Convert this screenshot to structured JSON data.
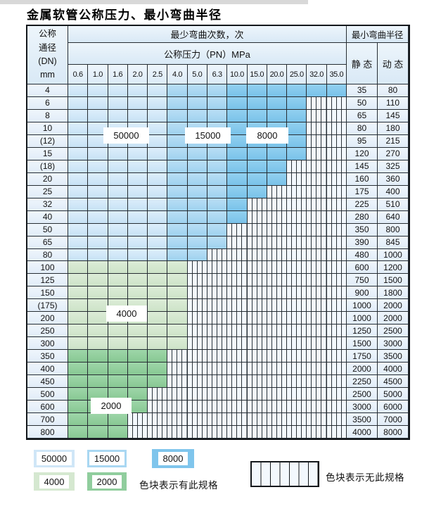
{
  "title": "金属软管公称压力、最小弯曲半径",
  "table": {
    "header": {
      "dn_lines": [
        "公称",
        "通径",
        "(DN)",
        "mm"
      ],
      "bend_cycles": "最少弯曲次数，次",
      "pressure": "公称压力（PN）MPa",
      "pressures": [
        "0.6",
        "1.0",
        "1.6",
        "2.0",
        "2.5",
        "4.0",
        "5.0",
        "6.3",
        "10.0",
        "15.0",
        "20.0",
        "25.0",
        "32.0",
        "35.0"
      ],
      "radius": "最小弯曲半径",
      "static": "静 态",
      "dynamic": "动 态"
    },
    "zone_columns": {
      "50000": [
        0,
        4
      ],
      "15000": [
        5,
        7
      ],
      "8000": [
        8,
        13
      ]
    },
    "rows": [
      {
        "dn": "4",
        "colored_cols": 14,
        "zone": "blue",
        "static": "35",
        "dynamic": "80"
      },
      {
        "dn": "6",
        "colored_cols": 12,
        "zone": "blue",
        "static": "50",
        "dynamic": "110"
      },
      {
        "dn": "8",
        "colored_cols": 12,
        "zone": "blue",
        "static": "65",
        "dynamic": "145"
      },
      {
        "dn": "10",
        "colored_cols": 12,
        "zone": "blue",
        "static": "80",
        "dynamic": "180"
      },
      {
        "dn": "(12)",
        "colored_cols": 12,
        "zone": "blue",
        "static": "95",
        "dynamic": "215"
      },
      {
        "dn": "15",
        "colored_cols": 12,
        "zone": "blue",
        "static": "120",
        "dynamic": "270"
      },
      {
        "dn": "(18)",
        "colored_cols": 11,
        "zone": "blue",
        "static": "145",
        "dynamic": "325"
      },
      {
        "dn": "20",
        "colored_cols": 11,
        "zone": "blue",
        "static": "160",
        "dynamic": "360"
      },
      {
        "dn": "25",
        "colored_cols": 10,
        "zone": "blue",
        "static": "175",
        "dynamic": "400"
      },
      {
        "dn": "32",
        "colored_cols": 9,
        "zone": "blue",
        "static": "225",
        "dynamic": "510"
      },
      {
        "dn": "40",
        "colored_cols": 9,
        "zone": "blue",
        "static": "280",
        "dynamic": "640"
      },
      {
        "dn": "50",
        "colored_cols": 8,
        "zone": "blue",
        "static": "350",
        "dynamic": "800"
      },
      {
        "dn": "65",
        "colored_cols": 8,
        "zone": "blue",
        "static": "390",
        "dynamic": "845"
      },
      {
        "dn": "80",
        "colored_cols": 7,
        "zone": "blue",
        "static": "480",
        "dynamic": "1000"
      },
      {
        "dn": "100",
        "colored_cols": 6,
        "zone": "4000",
        "static": "600",
        "dynamic": "1200"
      },
      {
        "dn": "125",
        "colored_cols": 6,
        "zone": "4000",
        "static": "750",
        "dynamic": "1500"
      },
      {
        "dn": "150",
        "colored_cols": 6,
        "zone": "4000",
        "static": "900",
        "dynamic": "1800"
      },
      {
        "dn": "(175)",
        "colored_cols": 6,
        "zone": "4000",
        "static": "1000",
        "dynamic": "2000"
      },
      {
        "dn": "200",
        "colored_cols": 6,
        "zone": "4000",
        "static": "1000",
        "dynamic": "2000"
      },
      {
        "dn": "250",
        "colored_cols": 6,
        "zone": "4000",
        "static": "1250",
        "dynamic": "2500"
      },
      {
        "dn": "300",
        "colored_cols": 6,
        "zone": "4000",
        "static": "1500",
        "dynamic": "3000"
      },
      {
        "dn": "350",
        "colored_cols": 5,
        "zone": "2000",
        "static": "1750",
        "dynamic": "3500"
      },
      {
        "dn": "400",
        "colored_cols": 5,
        "zone": "2000",
        "static": "2000",
        "dynamic": "4000"
      },
      {
        "dn": "450",
        "colored_cols": 5,
        "zone": "2000",
        "static": "2250",
        "dynamic": "4500"
      },
      {
        "dn": "500",
        "colored_cols": 4,
        "zone": "2000",
        "static": "2500",
        "dynamic": "5000"
      },
      {
        "dn": "600",
        "colored_cols": 4,
        "zone": "2000",
        "static": "3000",
        "dynamic": "6000"
      },
      {
        "dn": "700",
        "colored_cols": 3,
        "zone": "2000",
        "static": "3500",
        "dynamic": "7000"
      },
      {
        "dn": "800",
        "colored_cols": 3,
        "zone": "2000",
        "static": "4000",
        "dynamic": "8000"
      }
    ]
  },
  "overlay_labels": [
    {
      "text": "50000"
    },
    {
      "text": "15000"
    },
    {
      "text": "8000"
    },
    {
      "text": "4000"
    },
    {
      "text": "2000"
    }
  ],
  "legend": {
    "items": [
      {
        "label": "50000",
        "color": "#cfe6f7"
      },
      {
        "label": "15000",
        "color": "#a9d7f2"
      },
      {
        "label": "8000",
        "color": "#7fc5ec"
      },
      {
        "label": "4000",
        "color": "#d5e8d0"
      },
      {
        "label": "2000",
        "color": "#90cd9d"
      }
    ],
    "has_spec_text": "色块表示有此规格",
    "no_spec_text": "色块表示无此规格"
  },
  "colors": {
    "grid_line": "#262d33",
    "header_bg": "#ddebf7",
    "label_cell_bg": "#e9f2fb",
    "no_spec_bg": "#f3f8fd",
    "cycles_50000": "#cfe6f7",
    "cycles_15000": "#a9d7f2",
    "cycles_8000": "#7fc5ec",
    "cycles_4000": "#d5e8d0",
    "cycles_2000": "#90cd9d"
  }
}
